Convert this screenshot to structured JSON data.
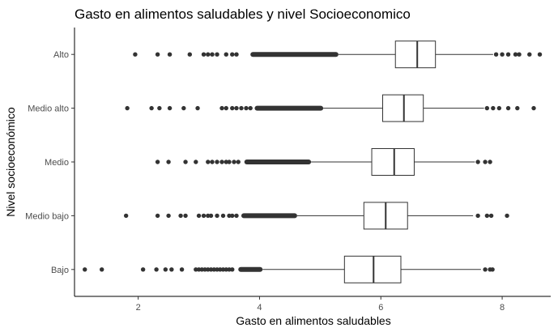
{
  "chart_data": {
    "type": "boxplot",
    "orientation": "horizontal",
    "title": "Gasto en alimentos saludables y nivel Socioeconomico",
    "xlabel": "Gasto en alimentos saludables",
    "ylabel": "Nivel socioeconómico",
    "xlim": [
      0.95,
      8.8
    ],
    "x_ticks": [
      2,
      4,
      6,
      8
    ],
    "grid": false,
    "box_color": "#333333",
    "outlier_color": "#333333",
    "categories": [
      "Bajo",
      "Medio bajo",
      "Medio",
      "Medio alto",
      "Alto"
    ],
    "boxes": [
      {
        "category": "Bajo",
        "whisker_low": 4.05,
        "q1": 5.4,
        "median": 5.88,
        "q3": 6.33,
        "whisker_high": 7.65,
        "outliers_low": [
          1.12,
          1.4,
          2.08,
          2.3,
          2.45,
          2.55,
          2.72,
          2.95,
          3.0,
          3.05,
          3.1,
          3.15,
          3.2,
          3.25,
          3.3,
          3.35,
          3.4,
          3.45,
          3.5,
          3.55
        ],
        "outliers_low_dense": [
          3.65,
          4.05
        ],
        "outliers_high": [
          7.72,
          7.8,
          7.84
        ]
      },
      {
        "category": "Medio bajo",
        "whisker_low": 4.62,
        "q1": 5.72,
        "median": 6.08,
        "q3": 6.44,
        "whisker_high": 7.52,
        "outliers_low": [
          1.8,
          2.32,
          2.5,
          2.7,
          2.78,
          3.0,
          3.08,
          3.15,
          3.2,
          3.3,
          3.4,
          3.5,
          3.55,
          3.62
        ],
        "outliers_low_dense": [
          3.7,
          4.62
        ],
        "outliers_high": [
          7.6,
          7.75,
          7.82,
          8.08
        ]
      },
      {
        "category": "Medio",
        "whisker_low": 4.85,
        "q1": 5.85,
        "median": 6.22,
        "q3": 6.55,
        "whisker_high": 7.55,
        "outliers_low": [
          2.32,
          2.5,
          2.78,
          2.95,
          3.15,
          3.22,
          3.3,
          3.38,
          3.45,
          3.5,
          3.58,
          3.65
        ],
        "outliers_low_dense": [
          3.75,
          4.85
        ],
        "outliers_high": [
          7.6,
          7.72,
          7.8
        ]
      },
      {
        "category": "Medio alto",
        "whisker_low": 5.05,
        "q1": 6.03,
        "median": 6.38,
        "q3": 6.7,
        "whisker_high": 7.7,
        "outliers_low": [
          1.82,
          2.22,
          2.35,
          2.52,
          2.75,
          2.98,
          3.38,
          3.45,
          3.55,
          3.62,
          3.7,
          3.78,
          3.85
        ],
        "outliers_low_dense": [
          3.92,
          5.05
        ],
        "outliers_high": [
          7.75,
          7.85,
          7.95,
          8.1,
          8.25,
          8.52
        ]
      },
      {
        "category": "Alto",
        "whisker_low": 5.3,
        "q1": 6.24,
        "median": 6.6,
        "q3": 6.9,
        "whisker_high": 7.85,
        "outliers_low": [
          1.95,
          2.32,
          2.52,
          2.85,
          3.08,
          3.15,
          3.22,
          3.3,
          3.45,
          3.55,
          3.62
        ],
        "outliers_low_dense": [
          3.85,
          5.3
        ],
        "outliers_high": [
          7.9,
          8.0,
          8.1,
          8.22,
          8.28,
          8.45,
          8.62
        ]
      }
    ]
  }
}
